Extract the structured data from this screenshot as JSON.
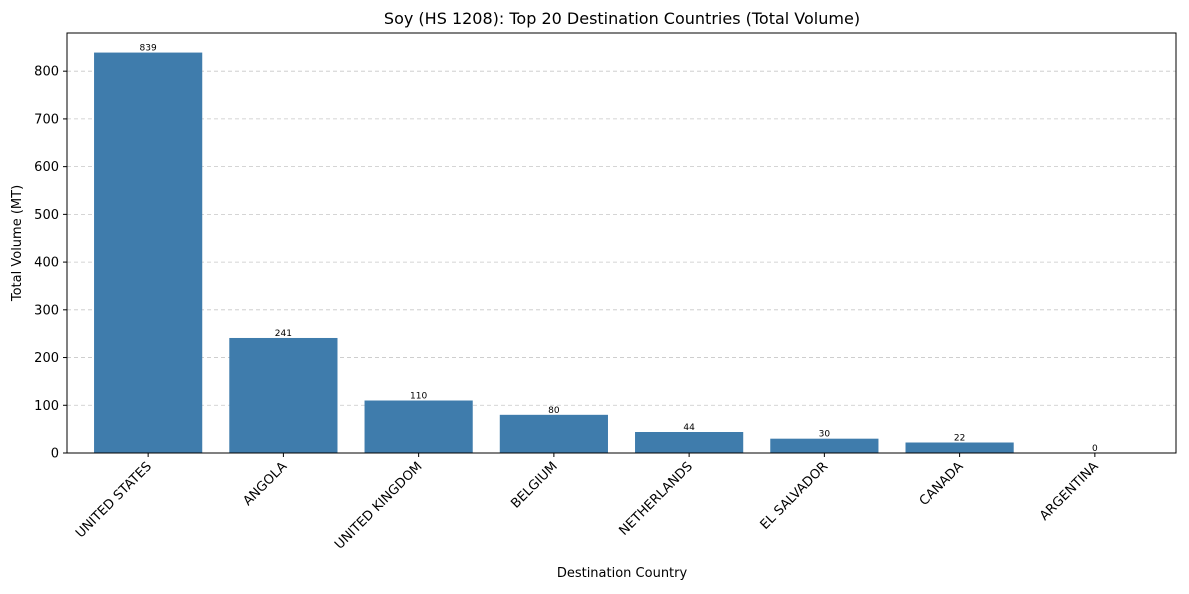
{
  "chart_data": {
    "type": "bar",
    "title": "Soy (HS 1208): Top 20 Destination Countries (Total Volume)",
    "xlabel": "Destination Country",
    "ylabel": "Total Volume (MT)",
    "categories": [
      "UNITED STATES",
      "ANGOLA",
      "UNITED KINGDOM",
      "BELGIUM",
      "NETHERLANDS",
      "EL SALVADOR",
      "CANADA",
      "ARGENTINA"
    ],
    "values": [
      839,
      241,
      110,
      80,
      44,
      30,
      22,
      0
    ],
    "value_labels": [
      "839",
      "241",
      "110",
      "80",
      "44",
      "30",
      "22",
      "0"
    ],
    "ylim": [
      0,
      880
    ],
    "yticks": [
      0,
      100,
      200,
      300,
      400,
      500,
      600,
      700,
      800
    ],
    "grid": "y-dashed",
    "bar_color": "#3f7cac"
  }
}
